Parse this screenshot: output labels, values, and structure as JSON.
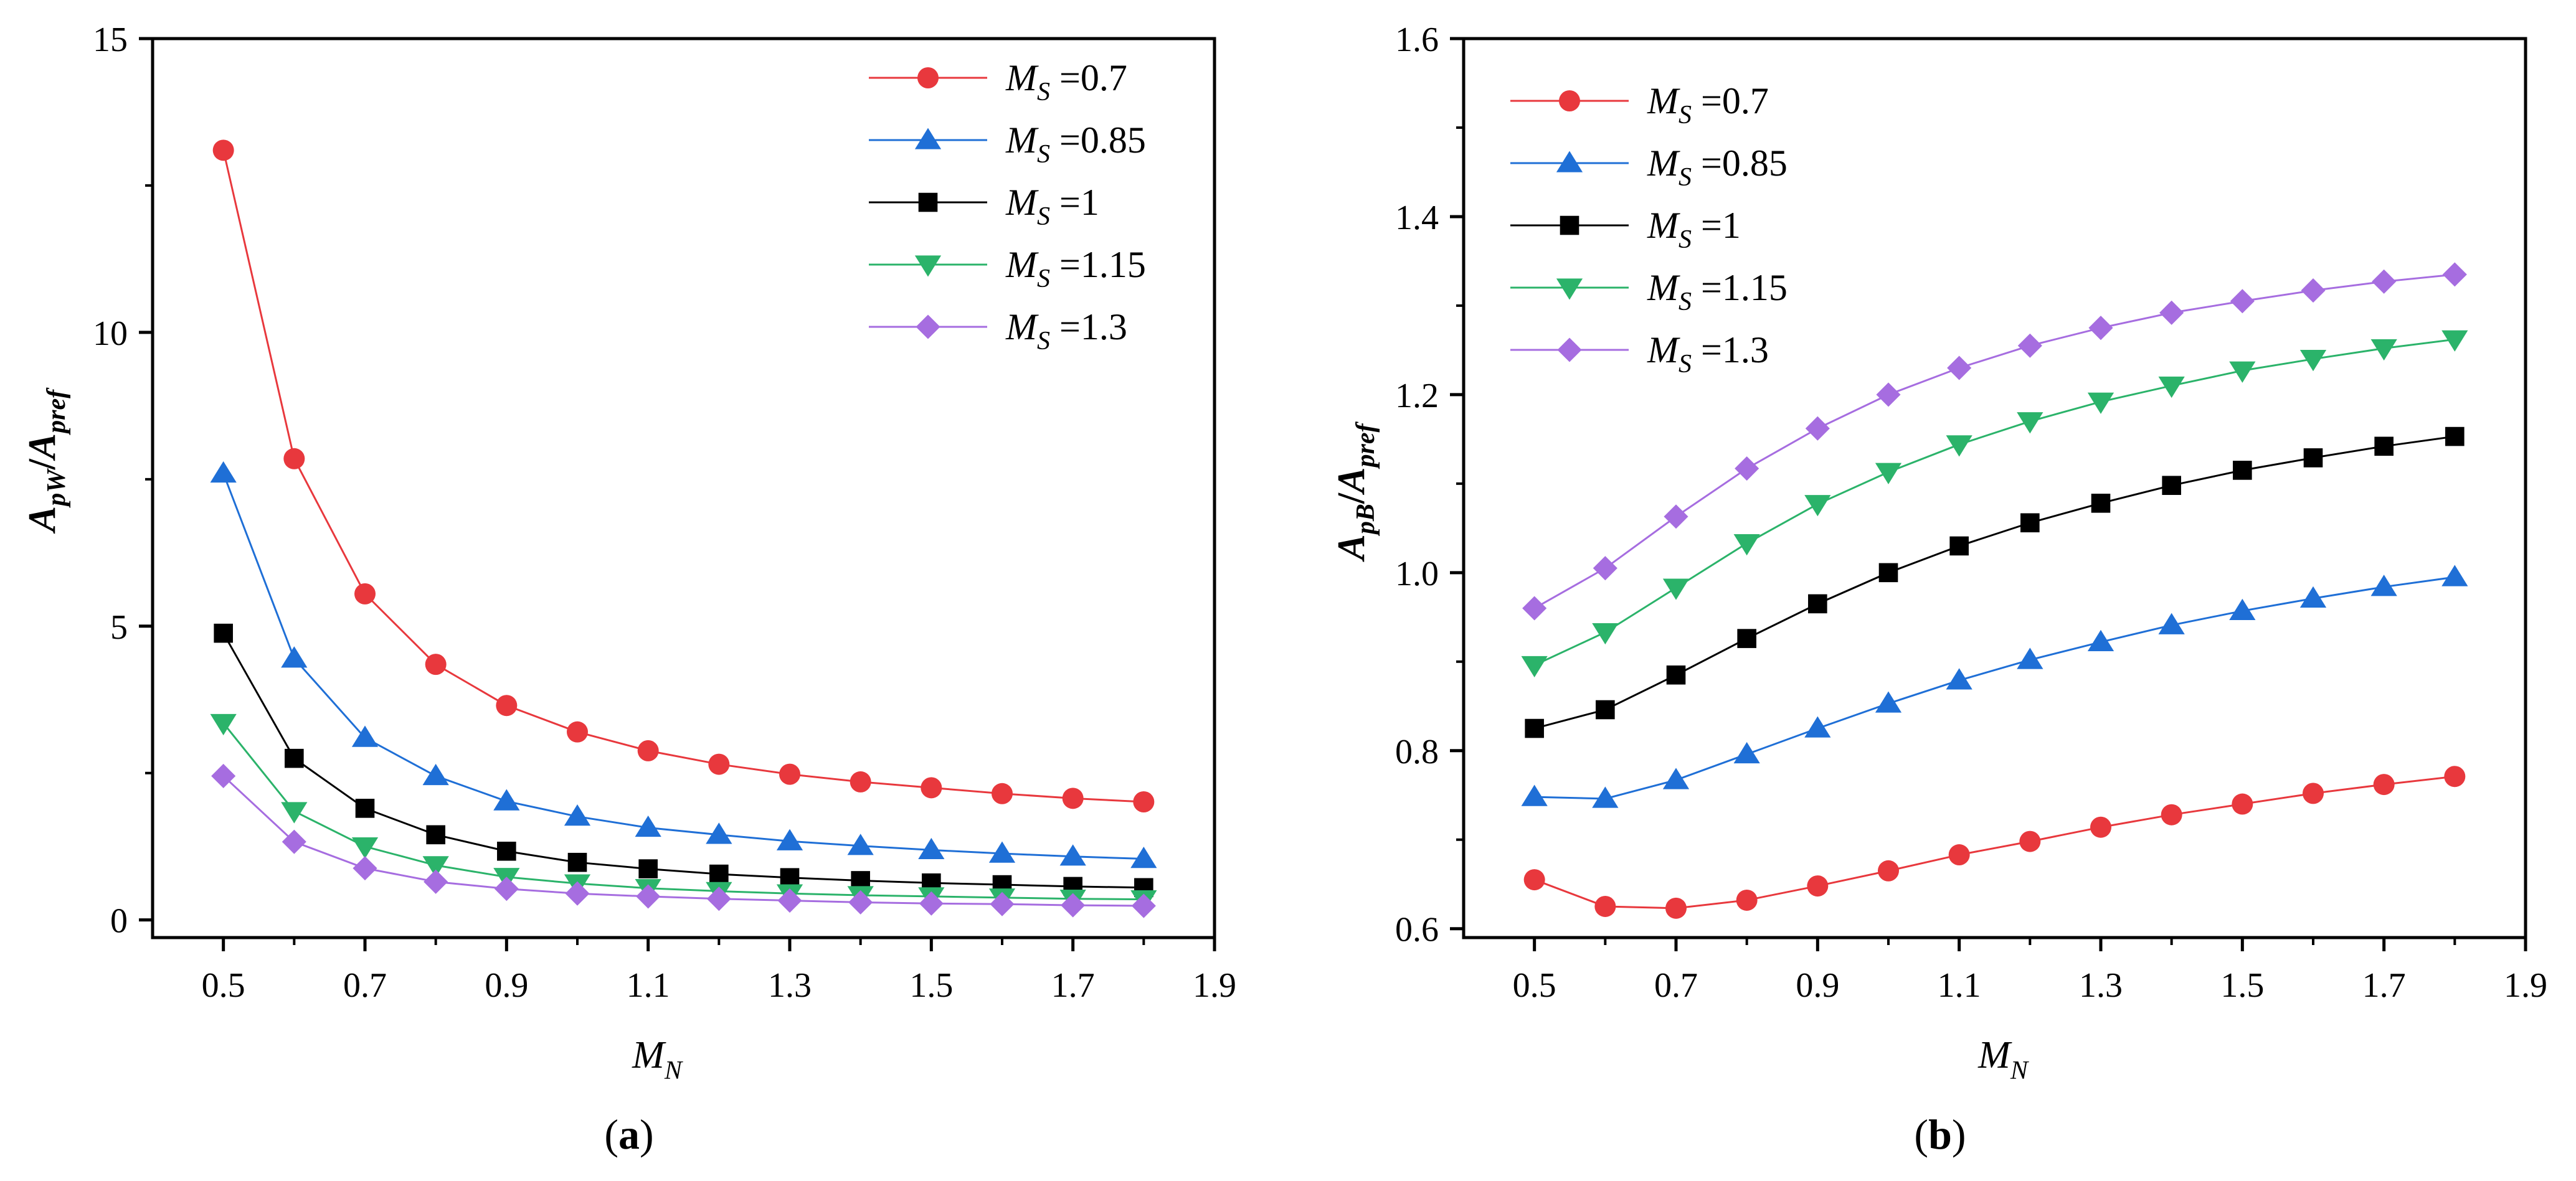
{
  "colors": {
    "series": [
      "#e8383d",
      "#1f6fd6",
      "#000000",
      "#2bb36a",
      "#a66de0"
    ],
    "line": [
      "#e8383d",
      "#1f6fd6",
      "#000000",
      "#2bb36a",
      "#a66de0"
    ]
  },
  "chart_data": [
    {
      "type": "line",
      "panel_label": "(a)",
      "panel_letter": "a",
      "xlabel": {
        "main": "M",
        "sub": "N"
      },
      "ylabel": {
        "a": "A",
        "s1": "pW",
        "slash": "/",
        "b": "A",
        "s2": "pref"
      },
      "xlim": [
        0.4,
        1.9
      ],
      "ylim": [
        -0.3,
        15
      ],
      "xticks": [
        0.5,
        0.7,
        0.9,
        1.1,
        1.3,
        1.5,
        1.7,
        1.9
      ],
      "xtick_labels": [
        "0.5",
        "0.7",
        "0.9",
        "1.1",
        "1.3",
        "1.5",
        "1.7",
        "1.9"
      ],
      "yticks": [
        0,
        5,
        10,
        15
      ],
      "ytick_labels": [
        "0",
        "5",
        "10",
        "15"
      ],
      "legend_position": "top-right",
      "x": [
        0.5,
        0.6,
        0.7,
        0.8,
        0.9,
        1.0,
        1.1,
        1.2,
        1.3,
        1.4,
        1.5,
        1.6,
        1.7,
        1.8
      ],
      "series": [
        {
          "name": "M_S =0.7",
          "sym": "M",
          "sub": "S",
          "suffix": " =0.7",
          "marker": "circle",
          "values": [
            13.1,
            7.85,
            5.55,
            4.35,
            3.65,
            3.2,
            2.88,
            2.65,
            2.48,
            2.35,
            2.25,
            2.15,
            2.07,
            2.01
          ]
        },
        {
          "name": "M_S =0.85",
          "sym": "M",
          "sub": "S",
          "suffix": " =0.85",
          "marker": "triangle-up",
          "values": [
            7.6,
            4.45,
            3.1,
            2.45,
            2.02,
            1.76,
            1.57,
            1.45,
            1.34,
            1.26,
            1.19,
            1.13,
            1.08,
            1.04
          ]
        },
        {
          "name": "M_S =1",
          "sym": "M",
          "sub": "S",
          "suffix": " =1",
          "marker": "square",
          "values": [
            4.88,
            2.75,
            1.9,
            1.45,
            1.17,
            0.98,
            0.87,
            0.78,
            0.72,
            0.67,
            0.63,
            0.6,
            0.57,
            0.55
          ]
        },
        {
          "name": "M_S =1.15",
          "sym": "M",
          "sub": "S",
          "suffix": " =1.15",
          "marker": "triangle-down",
          "values": [
            3.35,
            1.85,
            1.25,
            0.93,
            0.73,
            0.62,
            0.54,
            0.49,
            0.45,
            0.42,
            0.4,
            0.38,
            0.36,
            0.35
          ]
        },
        {
          "name": "M_S =1.3",
          "sym": "M",
          "sub": "S",
          "suffix": " =1.3",
          "marker": "diamond",
          "values": [
            2.45,
            1.33,
            0.88,
            0.65,
            0.53,
            0.45,
            0.4,
            0.36,
            0.33,
            0.3,
            0.28,
            0.27,
            0.25,
            0.24
          ]
        }
      ]
    },
    {
      "type": "line",
      "panel_label": "(b)",
      "panel_letter": "b",
      "xlabel": {
        "main": "M",
        "sub": "N"
      },
      "ylabel": {
        "a": "A",
        "s1": "pB",
        "slash": "/",
        "b": "A",
        "s2": "pref"
      },
      "xlim": [
        0.4,
        1.9
      ],
      "ylim": [
        0.59,
        1.6
      ],
      "xticks": [
        0.5,
        0.7,
        0.9,
        1.1,
        1.3,
        1.5,
        1.7,
        1.9
      ],
      "xtick_labels": [
        "0.5",
        "0.7",
        "0.9",
        "1.1",
        "1.3",
        "1.5",
        "1.7",
        "1.9"
      ],
      "yticks": [
        0.6,
        0.8,
        1.0,
        1.2,
        1.4,
        1.6
      ],
      "ytick_labels": [
        "0.6",
        "0.8",
        "1.0",
        "1.2",
        "1.4",
        "1.6"
      ],
      "legend_position": "top-left",
      "x": [
        0.5,
        0.6,
        0.7,
        0.8,
        0.9,
        1.0,
        1.1,
        1.2,
        1.3,
        1.4,
        1.5,
        1.6,
        1.7,
        1.8
      ],
      "series": [
        {
          "name": "M_S =0.7",
          "sym": "M",
          "sub": "S",
          "suffix": " =0.7",
          "marker": "circle",
          "values": [
            0.655,
            0.625,
            0.623,
            0.632,
            0.648,
            0.665,
            0.683,
            0.698,
            0.714,
            0.728,
            0.74,
            0.752,
            0.762,
            0.771
          ]
        },
        {
          "name": "M_S =0.85",
          "sym": "M",
          "sub": "S",
          "suffix": " =0.85",
          "marker": "triangle-up",
          "values": [
            0.748,
            0.746,
            0.767,
            0.796,
            0.825,
            0.853,
            0.879,
            0.902,
            0.922,
            0.941,
            0.957,
            0.971,
            0.984,
            0.995
          ]
        },
        {
          "name": "M_S =1",
          "sym": "M",
          "sub": "S",
          "suffix": " =1",
          "marker": "square",
          "values": [
            0.825,
            0.846,
            0.885,
            0.926,
            0.965,
            1.0,
            1.03,
            1.056,
            1.078,
            1.098,
            1.115,
            1.129,
            1.142,
            1.153
          ]
        },
        {
          "name": "M_S =1.15",
          "sym": "M",
          "sub": "S",
          "suffix": " =1.15",
          "marker": "triangle-down",
          "values": [
            0.896,
            0.933,
            0.983,
            1.033,
            1.077,
            1.113,
            1.144,
            1.17,
            1.192,
            1.21,
            1.227,
            1.24,
            1.252,
            1.262
          ]
        },
        {
          "name": "M_S =1.3",
          "sym": "M",
          "sub": "S",
          "suffix": " =1.3",
          "marker": "diamond",
          "values": [
            0.96,
            1.005,
            1.063,
            1.117,
            1.162,
            1.2,
            1.23,
            1.255,
            1.275,
            1.292,
            1.305,
            1.317,
            1.327,
            1.335
          ]
        }
      ]
    }
  ]
}
